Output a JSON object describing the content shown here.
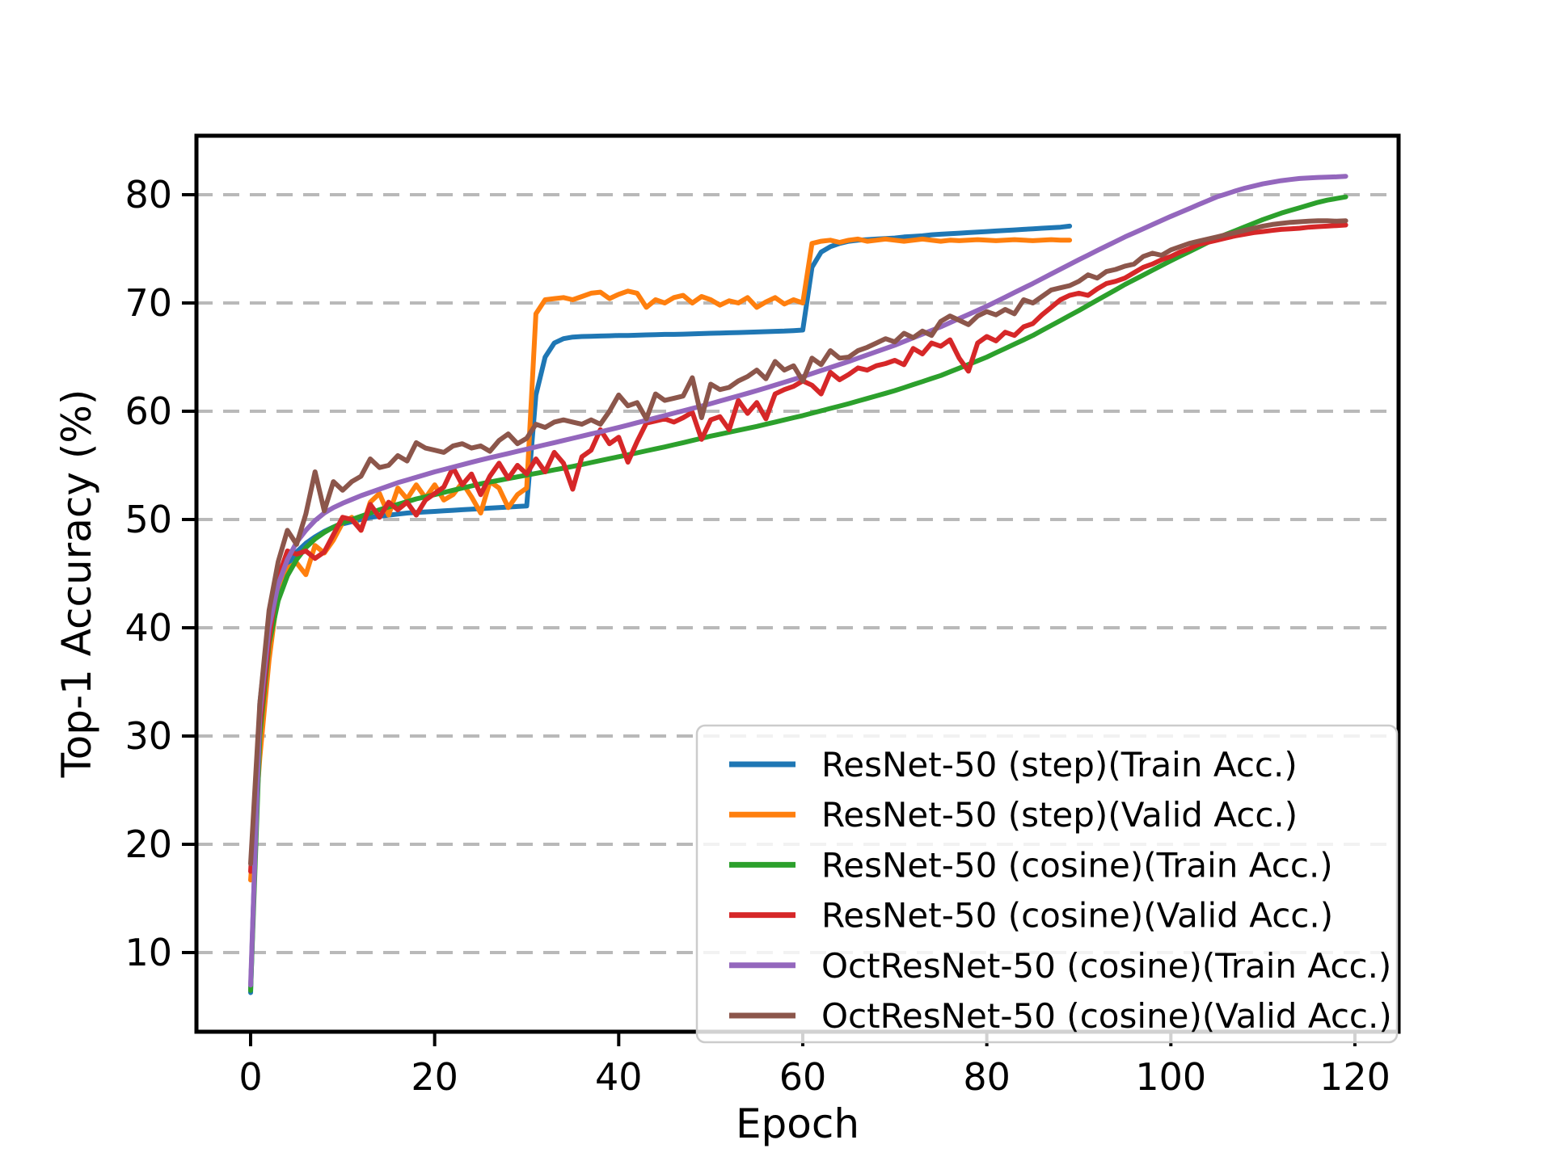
{
  "figure": {
    "background": "#ffffff",
    "grid_color": "#b9b9b9",
    "spine_color": "#000000",
    "tick_label_color": "#000000",
    "legend_border_color": "#cccccc",
    "legend_background": "rgba(255,255,255,0.82)"
  },
  "chart_data": {
    "type": "line",
    "title": "",
    "xlabel": "Epoch",
    "ylabel": "Top-1 Accuracy (%)",
    "x_ticks": [
      0,
      20,
      40,
      60,
      80,
      100,
      120
    ],
    "y_ticks": [
      10,
      20,
      30,
      40,
      50,
      60,
      70,
      80
    ],
    "xlim": [
      -6,
      125
    ],
    "ylim": [
      2.5,
      85.5
    ],
    "grid": "horizontal-dashed",
    "legend_position": "lower-right",
    "x_unit": "epoch_index_starts_at_0_step_1",
    "series": [
      {
        "name": "ResNet-50 (step)(Train Acc.)",
        "color": "#1f77b4",
        "x_start": 0,
        "values": [
          6.3,
          33,
          41,
          44,
          45.8,
          47,
          47.8,
          48.4,
          48.9,
          49.3,
          49.6,
          49.8,
          50,
          50.2,
          50.3,
          50.4,
          50.5,
          50.6,
          50.65,
          50.7,
          50.75,
          50.8,
          50.85,
          50.9,
          50.95,
          51,
          51.05,
          51.1,
          51.15,
          51.2,
          51.25,
          61.5,
          65,
          66.3,
          66.7,
          66.85,
          66.9,
          66.92,
          66.95,
          66.97,
          67,
          67,
          67.02,
          67.05,
          67.07,
          67.1,
          67.1,
          67.12,
          67.15,
          67.17,
          67.2,
          67.22,
          67.25,
          67.27,
          67.3,
          67.32,
          67.35,
          67.38,
          67.4,
          67.45,
          67.5,
          73.3,
          74.7,
          75.2,
          75.5,
          75.7,
          75.8,
          75.85,
          75.9,
          75.95,
          76,
          76.1,
          76.15,
          76.2,
          76.3,
          76.35,
          76.4,
          76.45,
          76.5,
          76.55,
          76.6,
          76.65,
          76.7,
          76.75,
          76.8,
          76.85,
          76.9,
          76.95,
          77,
          77.1
        ]
      },
      {
        "name": "ResNet-50 (step)(Valid Acc.)",
        "color": "#ff7f0e",
        "x_start": 0,
        "values": [
          16.7,
          28,
          37,
          43.5,
          45.5,
          46,
          44.9,
          47.6,
          46.9,
          48.1,
          49.7,
          50.2,
          49,
          51.6,
          52.4,
          50.4,
          52.9,
          51.9,
          53.2,
          52,
          53.2,
          51.8,
          52.3,
          53.4,
          52.1,
          50.6,
          53.5,
          52.9,
          51.1,
          52.3,
          52.9,
          69,
          70.3,
          70.4,
          70.5,
          70.3,
          70.6,
          70.9,
          71,
          70.4,
          70.8,
          71.1,
          70.9,
          69.6,
          70.3,
          70,
          70.5,
          70.7,
          70,
          70.6,
          70.3,
          69.8,
          70.2,
          70,
          70.5,
          69.6,
          70.1,
          70.5,
          69.9,
          70.3,
          70,
          75.5,
          75.7,
          75.8,
          75.6,
          75.8,
          75.9,
          75.7,
          75.8,
          75.9,
          75.8,
          75.7,
          75.8,
          75.9,
          75.8,
          75.7,
          75.8,
          75.75,
          75.8,
          75.85,
          75.8,
          75.75,
          75.8,
          75.85,
          75.8,
          75.75,
          75.8,
          75.85,
          75.8,
          75.8
        ]
      },
      {
        "name": "ResNet-50 (cosine)(Train Acc.)",
        "color": "#2ca02c",
        "x_start": 0,
        "values": [
          6.5,
          30,
          38.5,
          42.5,
          44.8,
          46.3,
          47.4,
          48.2,
          48.8,
          49.3,
          49.7,
          50,
          50.3,
          50.6,
          50.9,
          51.15,
          51.4,
          51.65,
          51.9,
          52.1,
          52.3,
          52.5,
          52.7,
          52.9,
          53.1,
          53.3,
          53.46,
          53.62,
          53.78,
          53.94,
          54.1,
          54.26,
          54.42,
          54.58,
          54.74,
          54.9,
          55.08,
          55.26,
          55.44,
          55.62,
          55.8,
          55.98,
          56.16,
          56.34,
          56.52,
          56.7,
          56.9,
          57.1,
          57.3,
          57.5,
          57.7,
          57.88,
          58.06,
          58.24,
          58.42,
          58.6,
          58.8,
          59,
          59.2,
          59.4,
          59.6,
          59.82,
          60.04,
          60.26,
          60.48,
          60.7,
          60.94,
          61.18,
          61.42,
          61.66,
          61.9,
          62.18,
          62.46,
          62.74,
          63.02,
          63.3,
          63.64,
          63.98,
          64.32,
          64.66,
          65,
          65.4,
          65.8,
          66.2,
          66.6,
          67,
          67.46,
          67.92,
          68.38,
          68.84,
          69.3,
          69.78,
          70.26,
          70.74,
          71.22,
          71.7,
          72.14,
          72.58,
          73.02,
          73.46,
          73.9,
          74.32,
          74.74,
          75.16,
          75.58,
          76,
          76.34,
          76.68,
          77.02,
          77.36,
          77.7,
          78,
          78.3,
          78.55,
          78.8,
          79.05,
          79.3,
          79.5,
          79.65,
          79.8
        ]
      },
      {
        "name": "ResNet-50 (cosine)(Valid Acc.)",
        "color": "#d62728",
        "x_start": 0,
        "values": [
          17.5,
          31,
          39,
          44.6,
          47.1,
          46.8,
          47.1,
          46.4,
          47,
          48.6,
          50.2,
          50,
          49,
          51.4,
          50.2,
          51.6,
          50.9,
          51.6,
          50.4,
          51.8,
          52.4,
          53,
          54.8,
          53.2,
          54.2,
          52.3,
          54,
          55.2,
          53.8,
          55,
          54.2,
          55.6,
          54.4,
          56.2,
          55.2,
          52.8,
          55.8,
          56.4,
          58.3,
          57,
          57.6,
          55.3,
          57.2,
          58.9,
          59.1,
          59.3,
          59,
          59.4,
          59.9,
          57.4,
          59.2,
          59.5,
          58.3,
          61,
          59.8,
          60.8,
          59.3,
          61.6,
          62,
          62.3,
          62.8,
          62.4,
          61.6,
          63.6,
          62.9,
          63.4,
          64,
          63.8,
          64.2,
          64.4,
          64.7,
          64.3,
          65.8,
          65.3,
          66.3,
          66,
          66.6,
          64.9,
          63.7,
          66.3,
          66.9,
          66.5,
          67.3,
          67,
          67.8,
          68.1,
          68.9,
          69.6,
          70.3,
          70.7,
          70.9,
          70.7,
          71.3,
          71.8,
          72,
          72.3,
          72.8,
          73.3,
          73.6,
          74,
          74.3,
          74.7,
          75,
          75.4,
          75.6,
          75.8,
          76,
          76.2,
          76.35,
          76.5,
          76.6,
          76.7,
          76.8,
          76.85,
          76.9,
          77,
          77.05,
          77.1,
          77.15,
          77.2
        ]
      },
      {
        "name": "OctResNet-50 (cosine)(Train Acc.)",
        "color": "#9467bd",
        "x_start": 0,
        "values": [
          7,
          32,
          40,
          44,
          46.3,
          47.9,
          49,
          49.9,
          50.6,
          51.1,
          51.5,
          51.85,
          52.2,
          52.5,
          52.8,
          53.1,
          53.4,
          53.65,
          53.9,
          54.15,
          54.4,
          54.62,
          54.84,
          55.06,
          55.28,
          55.5,
          55.7,
          55.9,
          56.1,
          56.3,
          56.5,
          56.7,
          56.9,
          57.1,
          57.3,
          57.5,
          57.7,
          57.9,
          58.1,
          58.3,
          58.5,
          58.72,
          58.94,
          59.16,
          59.38,
          59.6,
          59.82,
          60.04,
          60.26,
          60.48,
          60.7,
          60.94,
          61.18,
          61.42,
          61.66,
          61.9,
          62.16,
          62.42,
          62.68,
          62.94,
          63.2,
          63.48,
          63.76,
          64.04,
          64.32,
          64.6,
          64.9,
          65.2,
          65.5,
          65.8,
          66.1,
          66.44,
          66.78,
          67.12,
          67.46,
          67.8,
          68.18,
          68.56,
          68.94,
          69.32,
          69.7,
          70.12,
          70.54,
          70.96,
          71.38,
          71.8,
          72.24,
          72.68,
          73.12,
          73.56,
          74,
          74.42,
          74.84,
          75.26,
          75.68,
          76.1,
          76.48,
          76.86,
          77.24,
          77.62,
          78,
          78.36,
          78.72,
          79.08,
          79.44,
          79.8,
          80.07,
          80.34,
          80.6,
          80.8,
          81,
          81.15,
          81.3,
          81.4,
          81.5,
          81.55,
          81.6,
          81.63,
          81.65,
          81.7
        ]
      },
      {
        "name": "OctResNet-50 (cosine)(Valid Acc.)",
        "color": "#8c564b",
        "x_start": 0,
        "values": [
          18.2,
          33,
          41.6,
          46.1,
          49,
          47.7,
          50.5,
          54.4,
          50.8,
          53.5,
          52.7,
          53.5,
          54,
          55.6,
          54.8,
          55,
          55.9,
          55.4,
          57.1,
          56.6,
          56.4,
          56.2,
          56.8,
          57,
          56.6,
          56.8,
          56.3,
          57.3,
          57.9,
          57,
          57.5,
          58.8,
          58.5,
          59,
          59.2,
          59,
          58.8,
          59.2,
          58.8,
          60,
          61.5,
          60.5,
          60.8,
          59.3,
          61.6,
          61,
          61.2,
          61.4,
          63.1,
          59.4,
          62.5,
          62,
          62.2,
          62.8,
          63.2,
          63.8,
          63,
          64.6,
          63.8,
          64.2,
          62.8,
          64.9,
          64.3,
          65.6,
          64.9,
          65,
          65.6,
          65.9,
          66.3,
          66.7,
          66.4,
          67.2,
          66.8,
          67.4,
          67,
          68.3,
          68.8,
          68.4,
          68,
          68.8,
          69.2,
          68.9,
          69.4,
          69,
          70.3,
          70,
          70.6,
          71.2,
          71.4,
          71.6,
          72,
          72.6,
          72.3,
          72.9,
          73.1,
          73.4,
          73.6,
          74.3,
          74.6,
          74.4,
          74.9,
          75.2,
          75.5,
          75.7,
          75.9,
          76.1,
          76.3,
          76.5,
          76.7,
          76.9,
          77.1,
          77.25,
          77.35,
          77.45,
          77.5,
          77.55,
          77.6,
          77.6,
          77.55,
          77.6
        ]
      }
    ]
  }
}
